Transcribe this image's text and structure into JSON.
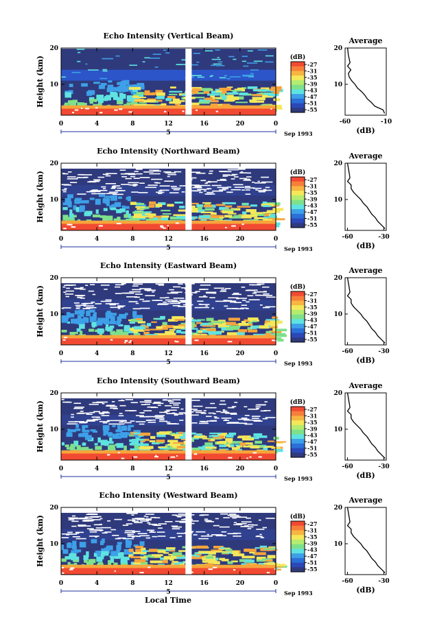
{
  "figure": {
    "xlabel": "Local Time",
    "date_label": "Sep 1993",
    "date_marker": "5"
  },
  "colors": {
    "white": "#ffffff",
    "dark_blue": "#2f3a7d",
    "blue": "#2b55c8",
    "mid_blue": "#3da0e8",
    "cyan": "#5fe3e0",
    "green": "#7fe08a",
    "yellow": "#f4e85a",
    "orange": "#f7a43c",
    "red": "#f24a32"
  },
  "colorbar": {
    "unit": "(dB)",
    "ticks": [
      "-27",
      "-31",
      "-35",
      "-39",
      "-43",
      "-47",
      "-51",
      "-55"
    ],
    "colors": [
      "#f24a32",
      "#f77f3a",
      "#f7b542",
      "#f4e85a",
      "#b5ec6f",
      "#7fe08a",
      "#5fe3e0",
      "#3da0e8",
      "#2b6fd8",
      "#2b48b8",
      "#2f3a7d"
    ]
  },
  "chart_data": [
    {
      "type": "heatmap",
      "title": "Echo Intensity (Vertical Beam)",
      "ylabel": "Height (km)",
      "x_ticks": [
        "0",
        "4",
        "8",
        "12",
        "16",
        "20",
        "0"
      ],
      "y_ticks": [
        "20",
        "10"
      ],
      "xlim": [
        0,
        24
      ],
      "ylim": [
        1.5,
        20
      ],
      "data_gap_hours": [
        13.9,
        14.6
      ],
      "colorbar_dB": [
        -27,
        -55
      ],
      "profile": {
        "title": "Average",
        "xlabel": "(dB)",
        "x_ticks": [
          "-60",
          "-10"
        ],
        "y_ticks": [
          "20",
          "10"
        ],
        "xlim": [
          -60,
          -10
        ],
        "height_km": [
          20,
          18,
          16,
          15,
          14,
          13,
          12,
          11,
          10,
          9,
          8,
          7,
          6,
          5,
          4,
          3,
          2
        ],
        "dB": [
          -57,
          -56,
          -54,
          -57,
          -53,
          -56,
          -55,
          -52,
          -48,
          -45,
          -40,
          -36,
          -33,
          -28,
          -24,
          -14,
          -12
        ]
      }
    },
    {
      "type": "heatmap",
      "title": "Echo Intensity (Northward Beam)",
      "ylabel": "Height (km)",
      "x_ticks": [
        "0",
        "4",
        "8",
        "12",
        "16",
        "20",
        "0"
      ],
      "y_ticks": [
        "20",
        "10"
      ],
      "xlim": [
        0,
        24
      ],
      "ylim": [
        1.5,
        20
      ],
      "data_gap_hours": [
        13.9,
        14.6
      ],
      "colorbar_dB": [
        -27,
        -55
      ],
      "profile": {
        "title": "Average",
        "xlabel": "(dB)",
        "x_ticks": [
          "-60",
          "-30"
        ],
        "y_ticks": [
          "20",
          "10"
        ],
        "xlim": [
          -62,
          -28
        ],
        "height_km": [
          20,
          18,
          16,
          15,
          14,
          13,
          12,
          11,
          10,
          9,
          8,
          7,
          6,
          5,
          4,
          3,
          2
        ],
        "dB": [
          -60,
          -59,
          -58,
          -60,
          -57,
          -57,
          -55,
          -52,
          -49,
          -47,
          -44,
          -42,
          -40,
          -37,
          -35,
          -32,
          -29
        ]
      }
    },
    {
      "type": "heatmap",
      "title": "Echo Intensity (Eastward Beam)",
      "ylabel": "Height (km)",
      "x_ticks": [
        "0",
        "4",
        "8",
        "12",
        "16",
        "20",
        "0"
      ],
      "y_ticks": [
        "20",
        "10"
      ],
      "xlim": [
        0,
        24
      ],
      "ylim": [
        1.5,
        20
      ],
      "data_gap_hours": [
        13.9,
        14.6
      ],
      "colorbar_dB": [
        -27,
        -55
      ],
      "profile": {
        "title": "Average",
        "xlabel": "(dB)",
        "x_ticks": [
          "-60",
          "-30"
        ],
        "y_ticks": [
          "20",
          "10"
        ],
        "xlim": [
          -62,
          -28
        ],
        "height_km": [
          20,
          18,
          16,
          15,
          14,
          13,
          12,
          11,
          10,
          9,
          8,
          7,
          6,
          5,
          4,
          3,
          2
        ],
        "dB": [
          -60,
          -59,
          -58,
          -60,
          -57,
          -57,
          -55,
          -52,
          -49,
          -47,
          -44,
          -42,
          -40,
          -37,
          -35,
          -32,
          -29
        ]
      }
    },
    {
      "type": "heatmap",
      "title": "Echo Intensity (Southward Beam)",
      "ylabel": "Height (km)",
      "x_ticks": [
        "0",
        "4",
        "8",
        "12",
        "16",
        "20",
        "0"
      ],
      "y_ticks": [
        "20",
        "10"
      ],
      "xlim": [
        0,
        24
      ],
      "ylim": [
        1.5,
        20
      ],
      "data_gap_hours": [
        13.9,
        14.6
      ],
      "colorbar_dB": [
        -27,
        -55
      ],
      "profile": {
        "title": "Average",
        "xlabel": "(dB)",
        "x_ticks": [
          "-60",
          "-30"
        ],
        "y_ticks": [
          "20",
          "10"
        ],
        "xlim": [
          -62,
          -28
        ],
        "height_km": [
          20,
          18,
          16,
          15,
          14,
          13,
          12,
          11,
          10,
          9,
          8,
          7,
          6,
          5,
          4,
          3,
          2
        ],
        "dB": [
          -60,
          -59,
          -58,
          -60,
          -57,
          -57,
          -55,
          -52,
          -49,
          -47,
          -44,
          -42,
          -40,
          -37,
          -35,
          -32,
          -29
        ]
      }
    },
    {
      "type": "heatmap",
      "title": "Echo Intensity (Westward Beam)",
      "ylabel": "Height (km)",
      "x_ticks": [
        "0",
        "4",
        "8",
        "12",
        "16",
        "20",
        "0"
      ],
      "y_ticks": [
        "20",
        "10"
      ],
      "xlim": [
        0,
        24
      ],
      "ylim": [
        1.5,
        20
      ],
      "data_gap_hours": [
        13.9,
        14.6
      ],
      "colorbar_dB": [
        -27,
        -55
      ],
      "profile": {
        "title": "Average",
        "xlabel": "(dB)",
        "x_ticks": [
          "-60",
          "-30"
        ],
        "y_ticks": [
          "20",
          "10"
        ],
        "xlim": [
          -62,
          -28
        ],
        "height_km": [
          20,
          18,
          16,
          15,
          14,
          13,
          12,
          11,
          10,
          9,
          8,
          7,
          6,
          5,
          4,
          3,
          2
        ],
        "dB": [
          -60,
          -59,
          -58,
          -60,
          -57,
          -57,
          -55,
          -52,
          -49,
          -47,
          -44,
          -42,
          -40,
          -37,
          -35,
          -32,
          -29
        ]
      }
    }
  ]
}
